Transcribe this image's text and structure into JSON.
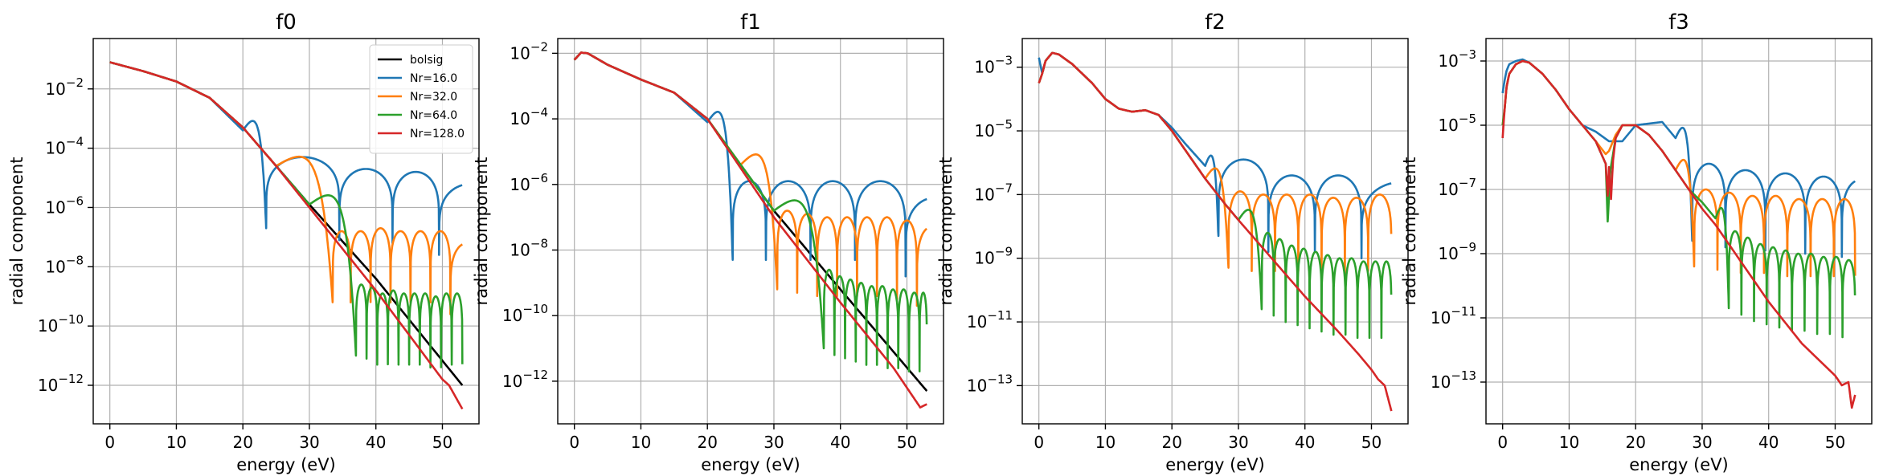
{
  "chart_data": [
    {
      "type": "line",
      "title": "f0",
      "xlabel": "energy (eV)",
      "ylabel": "radial component",
      "xlim": [
        -2.5,
        55.5
      ],
      "xticks": [
        0,
        10,
        20,
        30,
        40,
        50
      ],
      "ylim_log10": [
        -13.3,
        -0.3
      ],
      "yticks_log10": [
        -12,
        -10,
        -8,
        -6,
        -4,
        -2
      ],
      "yscale": "log",
      "grid": true,
      "legend": {
        "placement": "top-right",
        "entries": [
          "bolsig",
          "Nr=16.0",
          "Nr=32.0",
          "Nr=64.0",
          "Nr=128.0"
        ]
      },
      "series": [
        {
          "name": "bolsig",
          "color": "#000000",
          "kind": "curve",
          "x": [
            0,
            5,
            10,
            15,
            20,
            25,
            30,
            40,
            53
          ],
          "log10": [
            -1.1,
            -1.4,
            -1.75,
            -2.3,
            -3.3,
            -4.6,
            -5.9,
            -8.4,
            -12.0
          ]
        },
        {
          "name": "Nr=16.0",
          "color": "#1f77b4",
          "kind": "lobes",
          "x": [
            0,
            5,
            10,
            15,
            20
          ],
          "log10": [
            -1.1,
            -1.4,
            -1.75,
            -2.3,
            -3.4
          ],
          "nodes": [
            23.5,
            34.5,
            42.5,
            49.5
          ],
          "lobe_peaks": [
            -4.3,
            -4.7,
            -4.8,
            -5.2
          ],
          "end": [
            53,
            -5.2
          ]
        },
        {
          "name": "Nr=32.0",
          "color": "#ff7f0e",
          "kind": "lobes",
          "x": [
            0,
            5,
            10,
            15,
            20,
            25
          ],
          "log10": [
            -1.1,
            -1.4,
            -1.75,
            -2.3,
            -3.3,
            -4.6
          ],
          "nodes": [
            33.5,
            36.2,
            39.2,
            42.2,
            45.2,
            48.2,
            51.2
          ],
          "lobe_peaks": [
            -6.8,
            -6.8,
            -6.7,
            -6.8,
            -6.8,
            -6.8
          ],
          "end": [
            53,
            -7.2
          ]
        },
        {
          "name": "Nr=64.0",
          "color": "#2ca02c",
          "kind": "lobes",
          "x": [
            0,
            5,
            10,
            15,
            20,
            25,
            30
          ],
          "log10": [
            -1.1,
            -1.4,
            -1.75,
            -2.3,
            -3.3,
            -4.6,
            -5.9
          ],
          "nodes": [
            37.0,
            38.6,
            40.2,
            41.8,
            43.4,
            45.0,
            46.6,
            48.2,
            49.8,
            51.4,
            53.0
          ],
          "lobe_peaks": [
            -8.6,
            -8.7,
            -8.9,
            -8.8,
            -8.9,
            -8.9,
            -8.9,
            -9.0,
            -8.9,
            -8.9
          ],
          "end": [
            53,
            -9.0
          ]
        },
        {
          "name": "Nr=128.0",
          "color": "#d62728",
          "kind": "curve",
          "x": [
            0,
            5,
            10,
            15,
            20,
            25,
            30,
            40,
            48,
            50,
            51,
            52,
            53
          ],
          "log10": [
            -1.1,
            -1.4,
            -1.75,
            -2.3,
            -3.3,
            -4.6,
            -6.0,
            -8.8,
            -11.2,
            -11.8,
            -12.0,
            -12.4,
            -12.8
          ]
        }
      ]
    },
    {
      "type": "line",
      "title": "f1",
      "xlabel": "energy (eV)",
      "ylabel": "radial component",
      "xlim": [
        -2.5,
        55.5
      ],
      "xticks": [
        0,
        10,
        20,
        30,
        40,
        50
      ],
      "ylim_log10": [
        -13.3,
        -1.55
      ],
      "yticks_log10": [
        -12,
        -10,
        -8,
        -6,
        -4,
        -2
      ],
      "yscale": "log",
      "grid": true,
      "series": [
        {
          "name": "bolsig",
          "color": "#000000",
          "kind": "curve",
          "x": [
            0,
            1,
            2,
            5,
            10,
            15,
            20,
            25,
            30,
            40,
            53
          ],
          "log10": [
            -2.2,
            -1.98,
            -2.0,
            -2.35,
            -2.8,
            -3.2,
            -4.0,
            -5.4,
            -6.8,
            -9.2,
            -12.3
          ]
        },
        {
          "name": "Nr=16.0",
          "color": "#1f77b4",
          "kind": "lobes",
          "x": [
            0,
            1,
            2,
            5,
            10,
            15,
            20
          ],
          "log10": [
            -2.2,
            -1.98,
            -2.0,
            -2.35,
            -2.8,
            -3.2,
            -4.1
          ],
          "nodes": [
            23.8,
            28.8,
            35.5,
            42.2,
            49.8
          ],
          "lobe_peaks": [
            -5.9,
            -5.9,
            -5.9,
            -5.9
          ],
          "end": [
            53,
            -6.4
          ]
        },
        {
          "name": "Nr=32.0",
          "color": "#ff7f0e",
          "kind": "lobes",
          "x": [
            0,
            1,
            2,
            5,
            10,
            15,
            20,
            25
          ],
          "log10": [
            -2.2,
            -1.98,
            -2.0,
            -2.35,
            -2.8,
            -3.2,
            -4.0,
            -5.4
          ],
          "nodes": [
            30.5,
            33.5,
            36.5,
            39.5,
            42.5,
            45.5,
            48.5,
            51.5
          ],
          "lobe_peaks": [
            -6.8,
            -6.9,
            -7.0,
            -7.0,
            -7.0,
            -7.0,
            -7.1
          ],
          "end": [
            53,
            -7.3
          ]
        },
        {
          "name": "Nr=64.0",
          "color": "#2ca02c",
          "kind": "lobes",
          "x": [
            0,
            1,
            2,
            5,
            10,
            15,
            20,
            25,
            30
          ],
          "log10": [
            -2.2,
            -1.98,
            -2.0,
            -2.35,
            -2.8,
            -3.2,
            -4.0,
            -5.4,
            -6.8
          ],
          "nodes": [
            37.5,
            39.1,
            40.7,
            42.3,
            43.9,
            45.5,
            47.1,
            48.7,
            50.3,
            51.9,
            53.0
          ],
          "lobe_peaks": [
            -8.6,
            -8.8,
            -8.9,
            -9.0,
            -9.1,
            -9.1,
            -9.2,
            -9.2,
            -9.3,
            -9.3
          ],
          "end": [
            53,
            -9.3
          ]
        },
        {
          "name": "Nr=128.0",
          "color": "#d62728",
          "kind": "curve",
          "x": [
            0,
            1,
            2,
            5,
            10,
            15,
            20,
            25,
            30,
            40,
            48,
            50,
            51,
            52,
            53
          ],
          "log10": [
            -2.2,
            -1.98,
            -2.0,
            -2.35,
            -2.8,
            -3.2,
            -4.0,
            -5.5,
            -7.0,
            -9.6,
            -11.6,
            -12.2,
            -12.5,
            -12.8,
            -12.7
          ]
        }
      ]
    },
    {
      "type": "line",
      "title": "f2",
      "xlabel": "energy (eV)",
      "ylabel": "radial component",
      "xlim": [
        -2.5,
        55.5
      ],
      "xticks": [
        0,
        10,
        20,
        30,
        40,
        50
      ],
      "ylim_log10": [
        -14.2,
        -2.1
      ],
      "yticks_log10": [
        -13,
        -11,
        -9,
        -7,
        -5,
        -3
      ],
      "yscale": "log",
      "grid": true,
      "series": [
        {
          "name": "Nr=16.0",
          "color": "#1f77b4",
          "kind": "lobes",
          "x": [
            0,
            0.5,
            1,
            2,
            3,
            5,
            8,
            10,
            12,
            14,
            16,
            18,
            20,
            22,
            25
          ],
          "log10": [
            -2.7,
            -3.2,
            -2.8,
            -2.55,
            -2.6,
            -2.9,
            -3.5,
            -4.0,
            -4.3,
            -4.4,
            -4.35,
            -4.5,
            -4.9,
            -5.4,
            -6.1
          ],
          "nodes": [
            27.0,
            34.5,
            41.5,
            48.5
          ],
          "lobe_peaks": [
            -5.9,
            -6.4,
            -6.4
          ],
          "end": [
            53,
            -6.6
          ]
        },
        {
          "name": "Nr=32.0",
          "color": "#ff7f0e",
          "kind": "lobes",
          "x": [
            0,
            0.5,
            1,
            2,
            3,
            5,
            8,
            10,
            12,
            14,
            16,
            18,
            20,
            22,
            25
          ],
          "log10": [
            -3.5,
            -3.2,
            -2.8,
            -2.55,
            -2.6,
            -2.9,
            -3.5,
            -4.0,
            -4.3,
            -4.4,
            -4.35,
            -4.5,
            -5.0,
            -5.6,
            -6.5
          ],
          "nodes": [
            28.5,
            32.0,
            35.5,
            39.0,
            42.5,
            46.0,
            49.5,
            53.0
          ],
          "lobe_peaks": [
            -6.9,
            -7.0,
            -7.0,
            -7.0,
            -7.1,
            -7.1,
            -7.0
          ],
          "end": [
            53,
            -7.3
          ]
        },
        {
          "name": "Nr=64.0",
          "color": "#2ca02c",
          "kind": "lobes",
          "x": [
            0,
            0.5,
            1,
            2,
            3,
            5,
            8,
            10,
            12,
            14,
            16,
            18,
            20,
            22,
            25,
            28,
            30
          ],
          "log10": [
            -3.5,
            -3.2,
            -2.8,
            -2.55,
            -2.6,
            -2.9,
            -3.5,
            -4.0,
            -4.3,
            -4.4,
            -4.35,
            -4.5,
            -5.0,
            -5.6,
            -6.5,
            -7.3,
            -7.8
          ],
          "nodes": [
            33.5,
            35.3,
            37.1,
            38.9,
            40.7,
            42.5,
            44.3,
            46.1,
            47.9,
            49.7,
            51.5,
            53.0
          ],
          "lobe_peaks": [
            -8.2,
            -8.4,
            -8.6,
            -8.7,
            -8.8,
            -8.9,
            -9.0,
            -9.0,
            -9.1,
            -9.1,
            -9.1
          ],
          "end": [
            53,
            -9.1
          ]
        },
        {
          "name": "Nr=128.0",
          "color": "#d62728",
          "kind": "curve",
          "x": [
            0,
            0.5,
            1,
            2,
            3,
            5,
            8,
            10,
            12,
            14,
            16,
            18,
            20,
            22,
            25,
            28,
            30,
            35,
            40,
            45,
            48,
            50,
            51,
            52,
            53
          ],
          "log10": [
            -3.5,
            -3.2,
            -2.8,
            -2.55,
            -2.6,
            -2.9,
            -3.5,
            -4.0,
            -4.3,
            -4.4,
            -4.35,
            -4.5,
            -5.0,
            -5.6,
            -6.5,
            -7.3,
            -7.8,
            -9.0,
            -10.2,
            -11.3,
            -12.0,
            -12.5,
            -12.8,
            -13.0,
            -13.8
          ]
        }
      ]
    },
    {
      "type": "line",
      "title": "f3",
      "xlabel": "energy (eV)",
      "ylabel": "radial component",
      "xlim": [
        -2.5,
        55.5
      ],
      "xticks": [
        0,
        10,
        20,
        30,
        40,
        50
      ],
      "ylim_log10": [
        -14.3,
        -2.3
      ],
      "yticks_log10": [
        -13,
        -11,
        -9,
        -7,
        -5,
        -3
      ],
      "yscale": "log",
      "grid": true,
      "series": [
        {
          "name": "Nr=16.0",
          "color": "#1f77b4",
          "kind": "lobes",
          "x": [
            0,
            0.3,
            0.6,
            1,
            2,
            3,
            4,
            6,
            8,
            10,
            12,
            14,
            16,
            18,
            20,
            24,
            26
          ],
          "log10": [
            -4.0,
            -3.6,
            -3.3,
            -3.1,
            -3.0,
            -2.95,
            -3.05,
            -3.4,
            -3.9,
            -4.5,
            -5.0,
            -5.2,
            -5.5,
            -5.5,
            -5.0,
            -4.9,
            -5.4
          ],
          "nodes": [
            28.5,
            33.5,
            39.5,
            45.5,
            51.0
          ],
          "lobe_peaks": [
            -6.2,
            -6.4,
            -6.5,
            -6.6
          ],
          "end": [
            53,
            -6.7
          ]
        },
        {
          "name": "Nr=32.0",
          "color": "#ff7f0e",
          "kind": "lobes",
          "x": [
            0,
            0.3,
            0.6,
            1,
            2,
            3,
            4,
            6,
            8,
            10,
            12,
            14,
            15.5,
            16,
            17,
            18,
            20,
            22,
            24,
            26
          ],
          "log10": [
            -5.0,
            -4.5,
            -3.8,
            -3.4,
            -3.1,
            -3.0,
            -3.05,
            -3.4,
            -3.9,
            -4.5,
            -5.0,
            -5.5,
            -5.9,
            -5.8,
            -5.3,
            -5.0,
            -5.0,
            -5.3,
            -5.8,
            -6.4
          ],
          "nodes": [
            28.8,
            32.3,
            35.8,
            39.3,
            42.8,
            46.3,
            49.8,
            53.0
          ],
          "lobe_peaks": [
            -7.0,
            -7.1,
            -7.2,
            -7.2,
            -7.3,
            -7.3,
            -7.3
          ],
          "end": [
            53,
            -7.4
          ]
        },
        {
          "name": "Nr=64.0",
          "color": "#2ca02c",
          "kind": "lobes",
          "x": [
            0,
            0.3,
            0.6,
            1,
            2,
            3,
            4,
            6,
            8,
            10,
            12,
            14,
            15.5,
            15.8,
            16.2,
            17,
            18,
            20,
            22,
            24,
            26,
            28,
            30,
            32
          ],
          "log10": [
            -5.0,
            -4.5,
            -3.8,
            -3.4,
            -3.1,
            -3.0,
            -3.05,
            -3.4,
            -3.9,
            -4.5,
            -5.0,
            -5.5,
            -6.2,
            -8.0,
            -6.4,
            -5.4,
            -5.0,
            -5.0,
            -5.3,
            -5.8,
            -6.4,
            -7.0,
            -7.4,
            -7.9
          ],
          "nodes": [
            34.0,
            35.9,
            37.8,
            39.7,
            41.6,
            43.5,
            45.4,
            47.3,
            49.2,
            51.1,
            53.0
          ],
          "lobe_peaks": [
            -8.3,
            -8.5,
            -8.7,
            -8.8,
            -8.9,
            -9.0,
            -9.0,
            -9.1,
            -9.1,
            -9.2
          ],
          "end": [
            53,
            -9.2
          ]
        },
        {
          "name": "Nr=128.0",
          "color": "#d62728",
          "kind": "curve",
          "x": [
            0,
            0.3,
            0.6,
            1,
            2,
            3,
            4,
            6,
            8,
            10,
            12,
            14,
            15.5,
            15.8,
            16.0,
            16.3,
            16.6,
            17,
            18,
            20,
            22,
            24,
            26,
            28,
            30,
            32,
            35,
            40,
            45,
            48,
            50,
            51,
            52,
            52.5,
            53
          ],
          "log10": [
            -5.4,
            -4.5,
            -3.8,
            -3.4,
            -3.1,
            -3.0,
            -3.05,
            -3.4,
            -3.9,
            -4.5,
            -5.0,
            -5.5,
            -6.2,
            -7.2,
            -6.3,
            -7.3,
            -6.1,
            -5.4,
            -5.0,
            -5.0,
            -5.3,
            -5.8,
            -6.4,
            -7.0,
            -7.6,
            -8.1,
            -9.0,
            -10.5,
            -11.8,
            -12.4,
            -12.8,
            -13.1,
            -13.0,
            -13.8,
            -13.4
          ]
        }
      ]
    }
  ]
}
